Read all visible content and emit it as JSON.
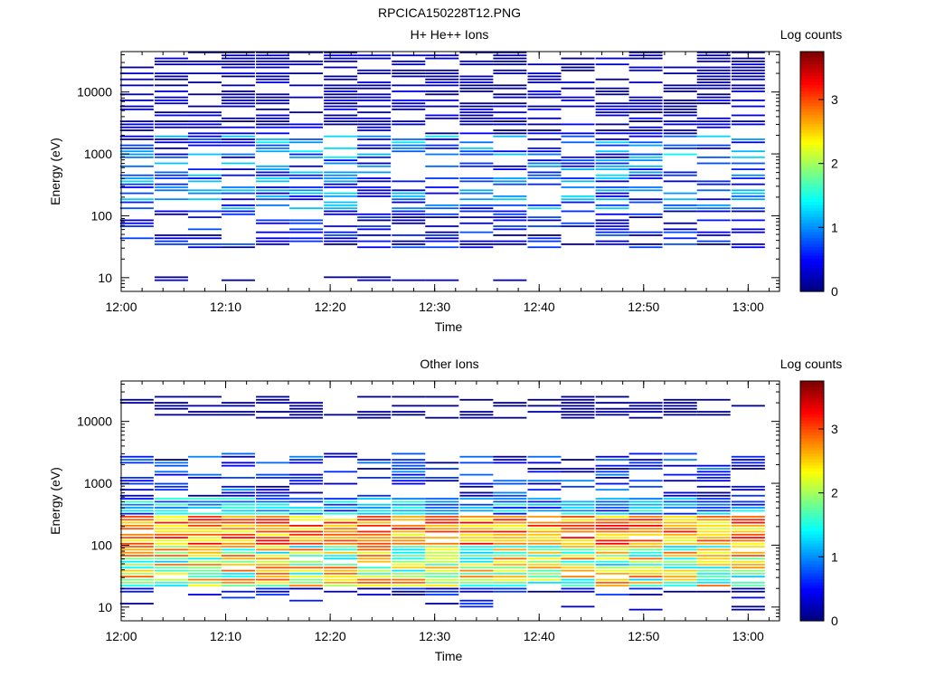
{
  "figure_title": "RPCICA150228T12.PNG",
  "chart_data": [
    {
      "type": "heatmap",
      "title": "H+ He++ Ions",
      "xlabel": "Time",
      "ylabel": "Energy (eV)",
      "y_scale": "log",
      "x_range": [
        "12:00",
        "13:03"
      ],
      "y_range": [
        6,
        45000
      ],
      "x_ticks": [
        "12:00",
        "12:10",
        "12:20",
        "12:30",
        "12:40",
        "12:50",
        "13:00"
      ],
      "y_ticks": [
        "10",
        "100",
        "1000",
        "10000"
      ],
      "colorbar": {
        "label": "Log counts",
        "range": [
          0,
          3.75
        ],
        "ticks": [
          "0",
          "1",
          "2",
          "3"
        ]
      },
      "time_bins": [
        "12:01.5",
        "12:04.8",
        "12:08",
        "12:11.2",
        "12:14.5",
        "12:17.7",
        "12:21",
        "12:24.2",
        "12:27.5",
        "12:30.7",
        "12:34",
        "12:37.2",
        "12:40.5",
        "12:43.7",
        "12:47",
        "12:50.2",
        "12:53.5",
        "12:56.7",
        "13:00"
      ],
      "energy_bands_eV": [
        {
          "range": "10000-45000",
          "log_counts_range": [
            0.0,
            0.4
          ]
        },
        {
          "range": "2000-10000",
          "log_counts_range": [
            0.0,
            0.5
          ]
        },
        {
          "range": "500-2000",
          "log_counts_range": [
            0.2,
            1.4
          ]
        },
        {
          "range": "120-500",
          "log_counts_range": [
            0.3,
            1.3
          ]
        },
        {
          "range": "30-120",
          "log_counts_range": [
            0.0,
            0.8
          ]
        },
        {
          "range": "8-12",
          "log_counts_range": [
            0.0,
            0.4
          ]
        }
      ]
    },
    {
      "type": "heatmap",
      "title": "Other Ions",
      "xlabel": "Time",
      "ylabel": "Energy (eV)",
      "y_scale": "log",
      "x_range": [
        "12:00",
        "13:03"
      ],
      "y_range": [
        6,
        45000
      ],
      "x_ticks": [
        "12:00",
        "12:10",
        "12:20",
        "12:30",
        "12:40",
        "12:50",
        "13:00"
      ],
      "y_ticks": [
        "10",
        "100",
        "1000",
        "10000"
      ],
      "colorbar": {
        "label": "Log counts",
        "range": [
          0,
          3.75
        ],
        "ticks": [
          "0",
          "1",
          "2",
          "3"
        ]
      },
      "time_bins": [
        "12:01.5",
        "12:04.8",
        "12:08",
        "12:11.2",
        "12:14.5",
        "12:17.7",
        "12:21",
        "12:24.2",
        "12:27.5",
        "12:30.7",
        "12:34",
        "12:37.2",
        "12:40.5",
        "12:43.7",
        "12:47",
        "12:50.2",
        "12:53.5",
        "12:56.7",
        "13:00"
      ],
      "energy_bands_eV": [
        {
          "range": "10000-25000",
          "log_counts_range": [
            0.0,
            0.2
          ]
        },
        {
          "range": "600-3000",
          "log_counts_range": [
            0.0,
            1.0
          ]
        },
        {
          "range": "300-600",
          "log_counts_range": [
            0.5,
            1.6
          ]
        },
        {
          "range": "100-300",
          "log_counts_range": [
            2.2,
            3.3
          ]
        },
        {
          "range": "20-100",
          "log_counts_range": [
            1.2,
            3.0
          ]
        },
        {
          "range": "8-20",
          "log_counts_range": [
            0.0,
            0.7
          ]
        }
      ]
    }
  ]
}
